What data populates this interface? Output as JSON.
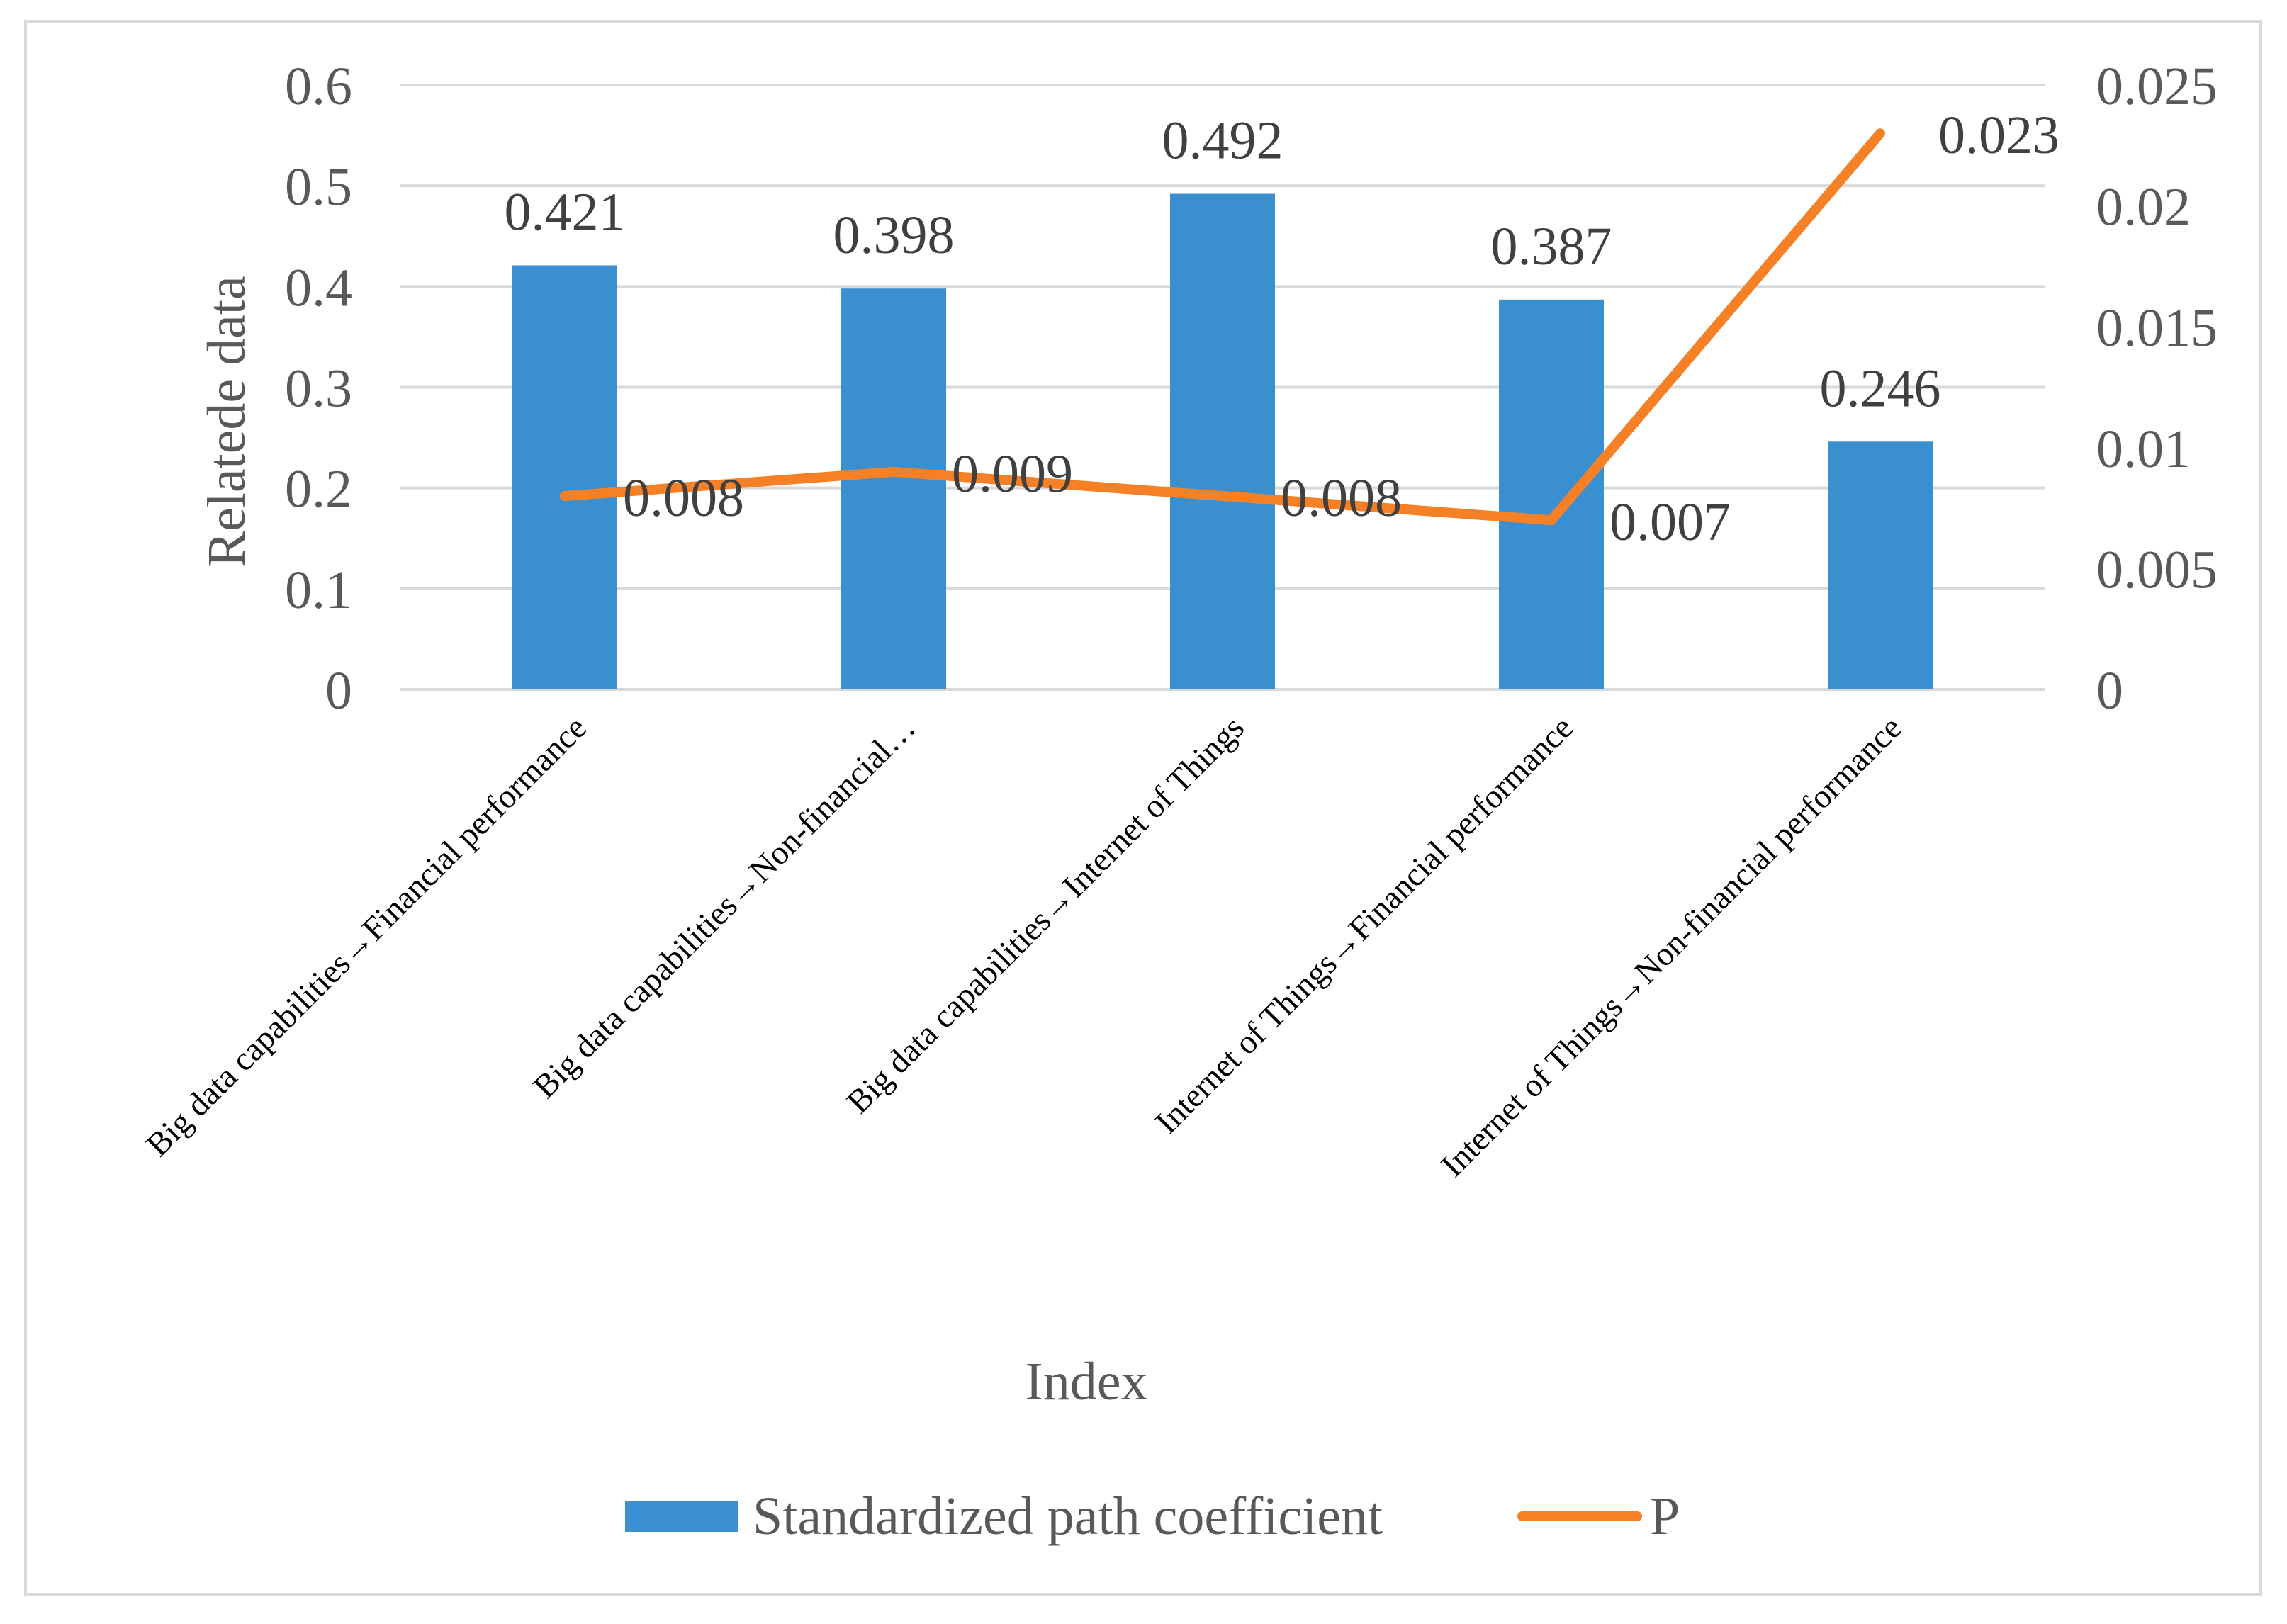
{
  "chart_data": {
    "type": "bar+line",
    "categories": [
      "Big data capabilities→Financial performance",
      "Big data capabilities→Non-financial…",
      "Big data capabilities→Internet of Things",
      "Internet of Things→Financial performance",
      "Internet of Things→Non-financial performance"
    ],
    "series": [
      {
        "name": "Standardized path coefficient",
        "type": "bar",
        "axis": "left",
        "color": "#3a8fd0",
        "values": [
          0.421,
          0.398,
          0.492,
          0.387,
          0.246
        ],
        "labels": [
          "0.421",
          "0.398",
          "0.492",
          "0.387",
          "0.246"
        ]
      },
      {
        "name": "P",
        "type": "line",
        "axis": "right",
        "color": "#f58025",
        "values": [
          0.008,
          0.009,
          0.008,
          0.007,
          0.023
        ],
        "labels": [
          "0.008",
          "0.009",
          "0.008",
          "0.007",
          "0.023"
        ]
      }
    ],
    "xlabel": "Index",
    "ylabel": "Relatede data",
    "ylim": [
      0,
      0.6
    ],
    "y2lim": [
      0,
      0.025
    ],
    "yticks": [
      "0",
      "0.1",
      "0.2",
      "0.3",
      "0.4",
      "0.5",
      "0.6"
    ],
    "y2ticks": [
      "0",
      "0.005",
      "0.01",
      "0.015",
      "0.02",
      "0.025"
    ],
    "legend_position": "bottom",
    "grid": true
  }
}
